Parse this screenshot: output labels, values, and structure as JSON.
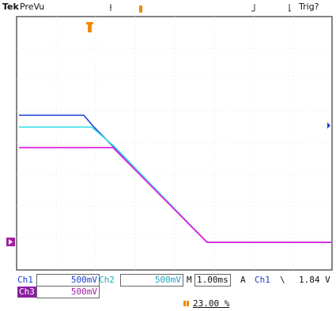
{
  "header": {
    "brand": "Tek",
    "mode": "PreVu",
    "trigger_status": "Trig?"
  },
  "colors": {
    "ch1": "#1f3fd6",
    "ch2": "#2fe0e8",
    "ch3": "#e020e0",
    "trigger_marker": "#f08a00",
    "grid": "#d9d9d9",
    "frame": "#5a5a5a"
  },
  "icons": {
    "trigger_position": "orange-t-marker",
    "ch3_ground": "magenta-arrow-marker",
    "trigger_level": "blue-arrow-marker",
    "trigger_offset": "orange-bar-marker"
  },
  "readout": {
    "ch1_label": "Ch1",
    "ch1_scale": "500mV",
    "ch2_label": "Ch2",
    "ch2_scale": "500mV",
    "timebase_label": "M",
    "timebase": "1.00ms",
    "trigger_label": "A",
    "trigger_source": "Ch1",
    "trigger_slope": "\\",
    "trigger_level": "1.84 V",
    "ch3_label": "Ch3",
    "ch3_scale": "500mV",
    "trigger_offset": "23.00 %"
  }
}
